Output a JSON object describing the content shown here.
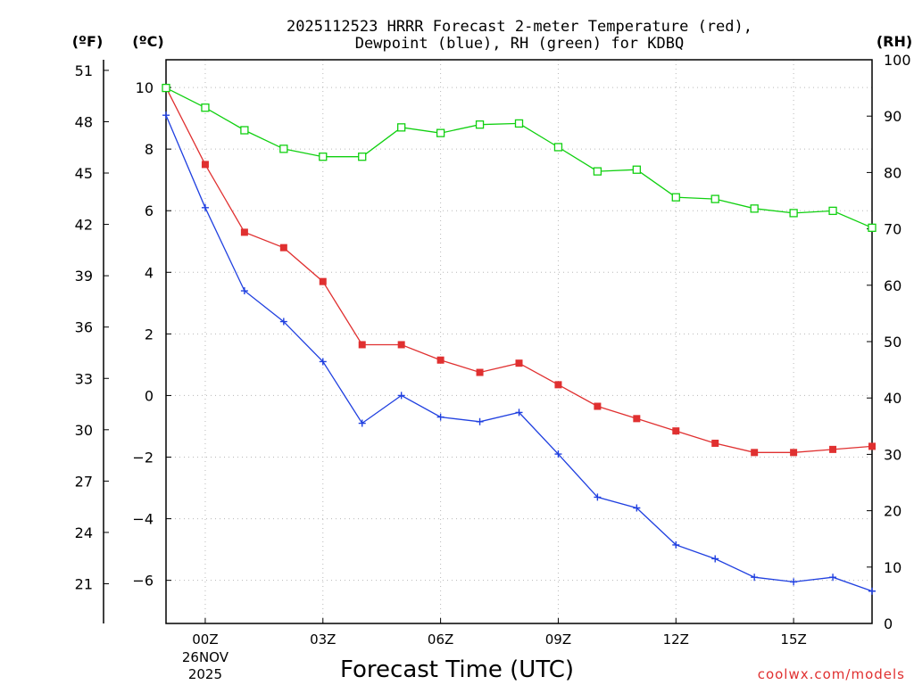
{
  "chart_data": {
    "type": "line",
    "title_line1": "2025112523 HRRR Forecast 2-meter Temperature (red),",
    "title_line2": "Dewpoint (blue), RH (green) for KDBQ",
    "unit_f": "(ºF)",
    "unit_c": "(ºC)",
    "unit_rh": "(RH)",
    "xlabel": "Forecast Time (UTC)",
    "credit": "coolwx.com/models",
    "x_hours": [
      -1,
      0,
      1,
      2,
      3,
      4,
      5,
      6,
      7,
      8,
      9,
      10,
      11,
      12,
      13,
      14,
      15,
      16,
      17
    ],
    "xlim": [
      -1,
      17
    ],
    "x_ticks": [
      {
        "hour": 0,
        "label": "00Z",
        "sub1": "26NOV",
        "sub2": "2025"
      },
      {
        "hour": 3,
        "label": "03Z"
      },
      {
        "hour": 6,
        "label": "06Z"
      },
      {
        "hour": 9,
        "label": "09Z"
      },
      {
        "hour": 12,
        "label": "12Z"
      },
      {
        "hour": 15,
        "label": "15Z"
      }
    ],
    "ylim_c": [
      -7.4,
      10.9
    ],
    "ylim_rh": [
      0,
      100
    ],
    "celsius_ticks": [
      10,
      8,
      6,
      4,
      2,
      0,
      -2,
      -4,
      -6
    ],
    "celsius_tick_labels": [
      "10",
      "8",
      "6",
      "4",
      "2",
      "0",
      "−2",
      "−4",
      "−6"
    ],
    "fahrenheit_ticks": [
      51,
      48,
      45,
      42,
      39,
      36,
      33,
      30,
      27,
      24,
      21
    ],
    "rh_ticks": [
      100,
      90,
      80,
      70,
      60,
      50,
      40,
      30,
      20,
      10,
      0
    ],
    "series": [
      {
        "name": "Temperature",
        "unit": "C",
        "color": "#e03030",
        "marker": "filled-square",
        "values": [
          10.0,
          7.5,
          5.3,
          4.8,
          3.7,
          1.65,
          1.65,
          1.15,
          0.75,
          1.05,
          0.35,
          -0.35,
          -0.75,
          -1.15,
          -1.55,
          -1.85,
          -1.85,
          -1.75,
          -1.65
        ]
      },
      {
        "name": "Dewpoint",
        "unit": "C",
        "color": "#2040e0",
        "marker": "plus",
        "values": [
          9.1,
          6.1,
          3.4,
          2.4,
          1.1,
          -0.9,
          0.0,
          -0.7,
          -0.85,
          -0.55,
          -1.9,
          -3.3,
          -3.65,
          -4.85,
          -5.3,
          -5.9,
          -6.05,
          -5.9,
          -6.35
        ]
      },
      {
        "name": "RH",
        "unit": "%",
        "color": "#10d010",
        "marker": "open-square",
        "values": [
          95,
          91.5,
          87.5,
          84.2,
          82.8,
          82.8,
          88,
          87,
          88.5,
          88.7,
          84.5,
          80.2,
          80.5,
          75.6,
          75.3,
          73.6,
          72.8,
          73.2,
          70.2
        ]
      }
    ]
  }
}
